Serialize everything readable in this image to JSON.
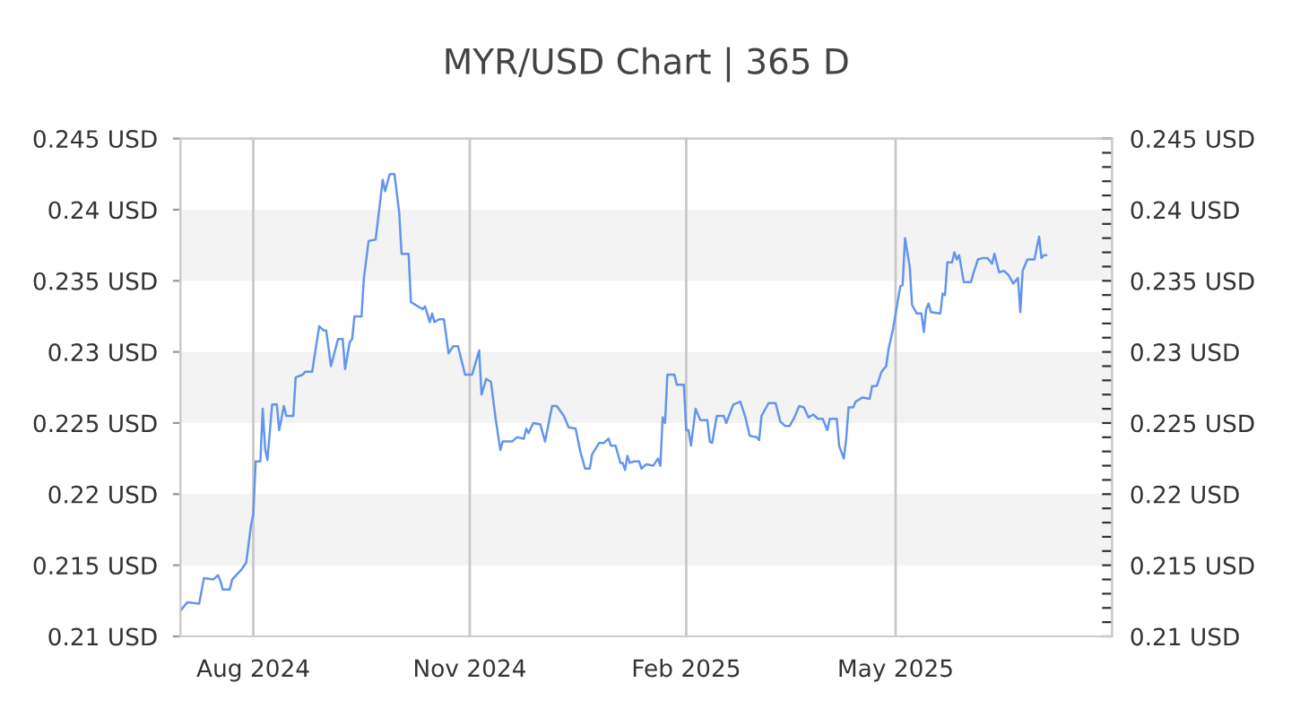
{
  "chart_data": {
    "type": "line",
    "title": "MYR/USD Chart | 365 D",
    "x": [
      "2024-07-01",
      "2024-07-04",
      "2024-07-09",
      "2024-07-11",
      "2024-07-15",
      "2024-07-17",
      "2024-07-18",
      "2024-07-19",
      "2024-07-22",
      "2024-07-23",
      "2024-07-27",
      "2024-07-29",
      "2024-07-31",
      "2024-08-01",
      "2024-08-02",
      "2024-08-04",
      "2024-08-05",
      "2024-08-06",
      "2024-08-07",
      "2024-08-09",
      "2024-08-11",
      "2024-08-12",
      "2024-08-14",
      "2024-08-15",
      "2024-08-18",
      "2024-08-19",
      "2024-08-22",
      "2024-08-23",
      "2024-08-26",
      "2024-08-29",
      "2024-08-31",
      "2024-09-01",
      "2024-09-03",
      "2024-09-06",
      "2024-09-08",
      "2024-09-09",
      "2024-09-11",
      "2024-09-12",
      "2024-09-13",
      "2024-09-16",
      "2024-09-17",
      "2024-09-19",
      "2024-09-22",
      "2024-09-25",
      "2024-09-26",
      "2024-09-28",
      "2024-09-30",
      "2024-10-02",
      "2024-10-03",
      "2024-10-06",
      "2024-10-07",
      "2024-10-09",
      "2024-10-10",
      "2024-10-12",
      "2024-10-13",
      "2024-10-15",
      "2024-10-16",
      "2024-10-17",
      "2024-10-19",
      "2024-10-21",
      "2024-10-23",
      "2024-10-25",
      "2024-10-27",
      "2024-10-30",
      "2024-11-02",
      "2024-11-05",
      "2024-11-06",
      "2024-11-08",
      "2024-11-10",
      "2024-11-12",
      "2024-11-14",
      "2024-11-15",
      "2024-11-19",
      "2024-11-21",
      "2024-11-24",
      "2024-11-25",
      "2024-11-26",
      "2024-11-28",
      "2024-12-01",
      "2024-12-03",
      "2024-12-06",
      "2024-12-08",
      "2024-12-11",
      "2024-12-13",
      "2024-12-16",
      "2024-12-18",
      "2024-12-20",
      "2024-12-22",
      "2024-12-23",
      "2024-12-26",
      "2024-12-28",
      "2024-12-30",
      "2024-12-31",
      "2025-01-02",
      "2025-01-04",
      "2025-01-05",
      "2025-01-06",
      "2025-01-07",
      "2025-01-08",
      "2025-01-10",
      "2025-01-12",
      "2025-01-13",
      "2025-01-15",
      "2025-01-18",
      "2025-01-20",
      "2025-01-21",
      "2025-01-22",
      "2025-01-23",
      "2025-01-24",
      "2025-01-27",
      "2025-01-28",
      "2025-01-31",
      "2025-02-01",
      "2025-02-02",
      "2025-02-03",
      "2025-02-05",
      "2025-02-07",
      "2025-02-10",
      "2025-02-11",
      "2025-02-12",
      "2025-02-14",
      "2025-02-17",
      "2025-02-18",
      "2025-02-21",
      "2025-02-24",
      "2025-02-26",
      "2025-02-28",
      "2025-03-03",
      "2025-03-04",
      "2025-03-05",
      "2025-03-08",
      "2025-03-11",
      "2025-03-13",
      "2025-03-15",
      "2025-03-17",
      "2025-03-19",
      "2025-03-21",
      "2025-03-23",
      "2025-03-25",
      "2025-03-27",
      "2025-03-29",
      "2025-03-31",
      "2025-04-02",
      "2025-04-03",
      "2025-04-06",
      "2025-04-07",
      "2025-04-09",
      "2025-04-10",
      "2025-04-11",
      "2025-04-13",
      "2025-04-14",
      "2025-04-17",
      "2025-04-20",
      "2025-04-21",
      "2025-04-23",
      "2025-04-25",
      "2025-04-27",
      "2025-04-28",
      "2025-04-30",
      "2025-05-03",
      "2025-05-04",
      "2025-05-05",
      "2025-05-07",
      "2025-05-08",
      "2025-05-10",
      "2025-05-12",
      "2025-05-13",
      "2025-05-14",
      "2025-05-15",
      "2025-05-16",
      "2025-05-20",
      "2025-05-21",
      "2025-05-22",
      "2025-05-23",
      "2025-05-25",
      "2025-05-26",
      "2025-05-27",
      "2025-05-28",
      "2025-05-30",
      "2025-06-02",
      "2025-06-03",
      "2025-06-05",
      "2025-06-07",
      "2025-06-09",
      "2025-06-11",
      "2025-06-12",
      "2025-06-14",
      "2025-06-16",
      "2025-06-18",
      "2025-06-20",
      "2025-06-22",
      "2025-06-23",
      "2025-06-24",
      "2025-06-26",
      "2025-06-29",
      "2025-07-01",
      "2025-07-02",
      "2025-07-03",
      "2025-07-04"
    ],
    "series": [
      {
        "color": "#6495ed",
        "values": [
          0.2118,
          0.2124,
          0.2123,
          0.2141,
          0.214,
          0.2143,
          0.2139,
          0.2133,
          0.2133,
          0.214,
          0.2147,
          0.2152,
          0.2178,
          0.2186,
          0.2223,
          0.2223,
          0.226,
          0.2232,
          0.2224,
          0.2263,
          0.2263,
          0.2245,
          0.2262,
          0.2255,
          0.2255,
          0.2282,
          0.2284,
          0.2286,
          0.2286,
          0.2318,
          0.2315,
          0.2315,
          0.229,
          0.2309,
          0.2309,
          0.2288,
          0.2307,
          0.2309,
          0.2325,
          0.2325,
          0.2352,
          0.2378,
          0.2379,
          0.2421,
          0.2413,
          0.2425,
          0.2425,
          0.2398,
          0.2369,
          0.2369,
          0.2335,
          0.2333,
          0.2332,
          0.233,
          0.2332,
          0.2321,
          0.2327,
          0.2321,
          0.2323,
          0.2323,
          0.2299,
          0.2304,
          0.2304,
          0.2284,
          0.2284,
          0.2301,
          0.227,
          0.2281,
          0.2279,
          0.2253,
          0.2231,
          0.2237,
          0.2237,
          0.224,
          0.2239,
          0.2246,
          0.2243,
          0.225,
          0.2249,
          0.2237,
          0.2262,
          0.2262,
          0.2255,
          0.2247,
          0.2246,
          0.223,
          0.2218,
          0.2218,
          0.2228,
          0.2236,
          0.2236,
          0.2239,
          0.2234,
          0.2234,
          0.2222,
          0.2222,
          0.2217,
          0.2227,
          0.2222,
          0.2223,
          0.2223,
          0.2218,
          0.2221,
          0.222,
          0.2225,
          0.222,
          0.2254,
          0.225,
          0.2284,
          0.2284,
          0.2277,
          0.2277,
          0.2245,
          0.2245,
          0.2234,
          0.226,
          0.2252,
          0.2252,
          0.2237,
          0.2236,
          0.2255,
          0.2255,
          0.225,
          0.2263,
          0.2265,
          0.2255,
          0.2241,
          0.224,
          0.2238,
          0.2255,
          0.2264,
          0.2264,
          0.2251,
          0.2248,
          0.2248,
          0.2254,
          0.2262,
          0.2261,
          0.2254,
          0.2256,
          0.2253,
          0.2253,
          0.2245,
          0.2253,
          0.2253,
          0.2234,
          0.2225,
          0.2239,
          0.2261,
          0.2261,
          0.2265,
          0.2268,
          0.2267,
          0.2276,
          0.2276,
          0.2286,
          0.229,
          0.2302,
          0.2317,
          0.2346,
          0.2347,
          0.238,
          0.236,
          0.2333,
          0.2327,
          0.2327,
          0.2314,
          0.233,
          0.2334,
          0.2328,
          0.2327,
          0.2341,
          0.234,
          0.2363,
          0.2363,
          0.237,
          0.2365,
          0.2368,
          0.2349,
          0.2349,
          0.2355,
          0.2365,
          0.2366,
          0.2366,
          0.2362,
          0.2369,
          0.2356,
          0.2357,
          0.2354,
          0.2348,
          0.2352,
          0.2328,
          0.2357,
          0.2365,
          0.2365,
          0.2381,
          0.2366,
          0.2368,
          0.2368
        ]
      }
    ],
    "xlim": [
      "2024-07-01",
      "2025-08-01"
    ],
    "xticks": [
      {
        "value": "2024-08-01",
        "label": "Aug 2024"
      },
      {
        "value": "2024-11-01",
        "label": "Nov 2024"
      },
      {
        "value": "2025-02-01",
        "label": "Feb 2025"
      },
      {
        "value": "2025-05-01",
        "label": "May 2025"
      }
    ],
    "ylim": [
      0.21,
      0.245
    ],
    "yticks": [
      {
        "value": 0.21,
        "label": "0.21 USD"
      },
      {
        "value": 0.215,
        "label": "0.215 USD"
      },
      {
        "value": 0.22,
        "label": "0.22 USD"
      },
      {
        "value": 0.225,
        "label": "0.225 USD"
      },
      {
        "value": 0.23,
        "label": "0.23 USD"
      },
      {
        "value": 0.235,
        "label": "0.235 USD"
      },
      {
        "value": 0.24,
        "label": "0.24 USD"
      },
      {
        "value": 0.245,
        "label": "0.245 USD"
      }
    ],
    "y2lim": [
      0.21,
      0.245
    ],
    "y2ticks": [
      {
        "value": 0.21,
        "label": "0.21 USD"
      },
      {
        "value": 0.215,
        "label": "0.215 USD"
      },
      {
        "value": 0.22,
        "label": "0.22 USD"
      },
      {
        "value": 0.225,
        "label": "0.225 USD"
      },
      {
        "value": 0.23,
        "label": "0.23 USD"
      },
      {
        "value": 0.235,
        "label": "0.235 USD"
      },
      {
        "value": 0.24,
        "label": "0.24 USD"
      },
      {
        "value": 0.245,
        "label": "0.245 USD"
      }
    ],
    "bands": [
      {
        "axis": "y",
        "from": 0.215,
        "to": 0.22,
        "color": "#f3f3f3"
      },
      {
        "axis": "y",
        "from": 0.225,
        "to": 0.23,
        "color": "#f3f3f3"
      },
      {
        "axis": "y",
        "from": 0.235,
        "to": 0.24,
        "color": "#f3f3f3"
      }
    ],
    "grid": "x"
  }
}
